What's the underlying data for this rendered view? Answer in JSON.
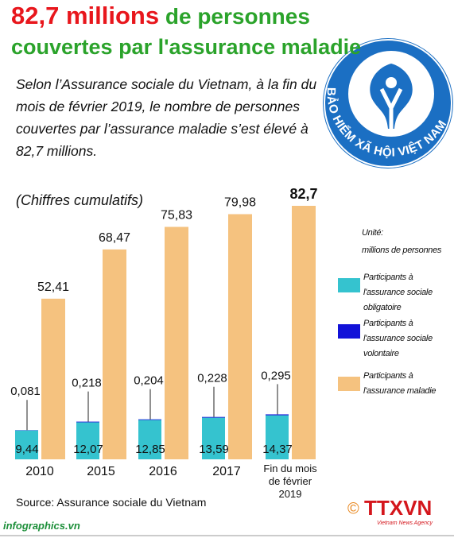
{
  "chart_data": {
    "type": "bar",
    "title": {
      "highlight": "82,7 millions",
      "line1": "de personnes",
      "line2": "couvertes par l'assurance maladie"
    },
    "description": "Selon l’Assurance sociale du Vietnam, à la fin du mois de février 2019, le nombre de personnes couvertes par l’assurance maladie s’est élevé à 82,7 millions.",
    "note": "(Chiffres cumulatifs)",
    "unit_label": "Unité:",
    "unit": "millions de personnes",
    "categories": [
      "2010",
      "2015",
      "2016",
      "2017",
      "Fin du mois de février 2019"
    ],
    "series": [
      {
        "name": "Participants à l'assurance sociale obligatoire",
        "color": "#35c3cf",
        "values": [
          9.44,
          12.07,
          12.85,
          13.59,
          14.37
        ],
        "value_labels": [
          "9,44",
          "12,07",
          "12,85",
          "13,59",
          "14,37"
        ]
      },
      {
        "name": "Participants à l'assurance sociale volontaire",
        "color": "#1212d8",
        "values": [
          0.081,
          0.218,
          0.204,
          0.228,
          0.295
        ],
        "value_labels": [
          "0,081",
          "0,218",
          "0,204",
          "0,228",
          "0,295"
        ]
      },
      {
        "name": "Participants à l'assurance maladie",
        "color": "#f5c27f",
        "values": [
          52.41,
          68.47,
          75.83,
          79.98,
          82.7
        ],
        "value_labels": [
          "52,41",
          "68,47",
          "75,83",
          "79,98",
          "82,7"
        ]
      }
    ],
    "source": "Source: Assurance sociale du Vietnam",
    "logo_text": "BẢO HIỂM XÃ HỘI VIỆT NAM",
    "website": "infographics.vn",
    "agency": {
      "symbol": "©",
      "name": "TTXVN",
      "subtitle": "Vietnam News Agency"
    }
  }
}
